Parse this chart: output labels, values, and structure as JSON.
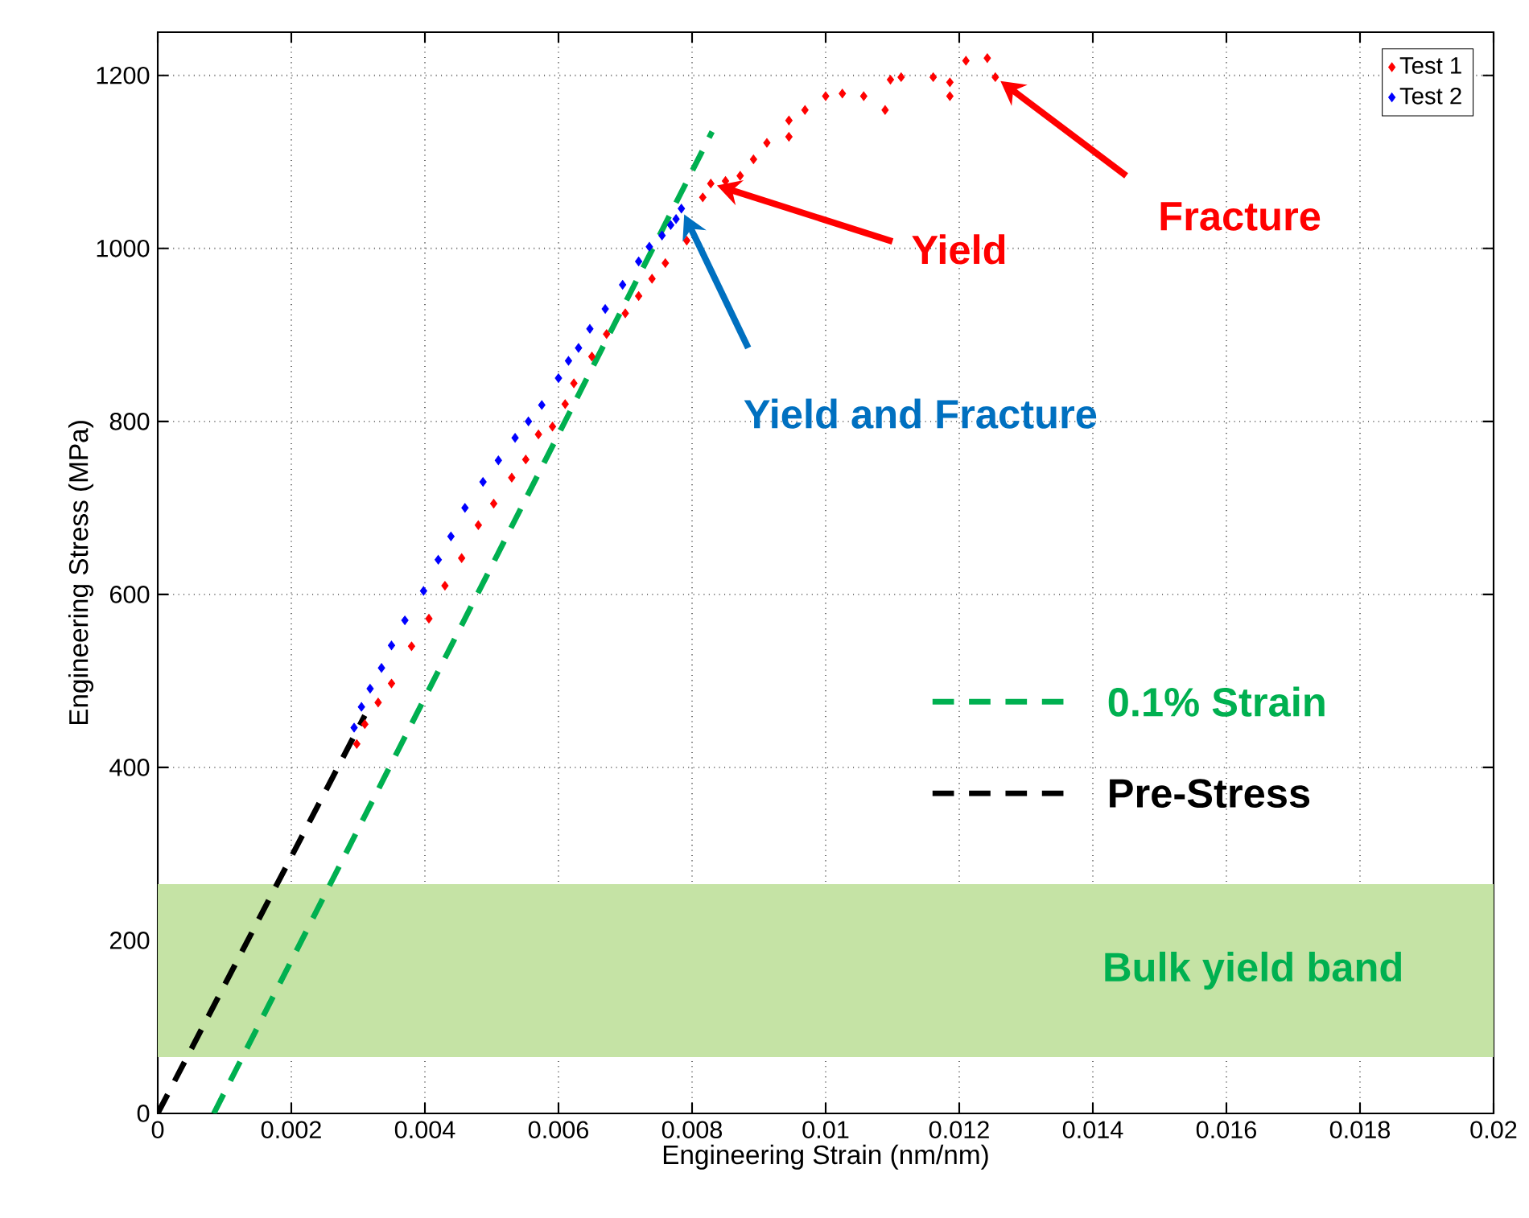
{
  "chart_data": {
    "type": "scatter",
    "xlabel": "Engineering Strain (nm/nm)",
    "ylabel": "Engineering Stress (MPa)",
    "xlim": [
      0,
      0.02
    ],
    "ylim": [
      0,
      1250
    ],
    "xticks": [
      0,
      0.002,
      0.004,
      0.006,
      0.008,
      0.01,
      0.012,
      0.014,
      0.016,
      0.018,
      0.02
    ],
    "yticks": [
      0,
      200,
      400,
      600,
      800,
      1000,
      1200
    ],
    "grid": true,
    "legend": "top right",
    "marker": "diamond",
    "series": [
      {
        "name": "Test 1",
        "color": "#ff0000",
        "x": [
          0.00298,
          0.0031,
          0.0033,
          0.0035,
          0.0038,
          0.00406,
          0.0043,
          0.00455,
          0.0048,
          0.00503,
          0.0053,
          0.00551,
          0.0057,
          0.00591,
          0.0061,
          0.00623,
          0.0065,
          0.00672,
          0.007,
          0.0072,
          0.0074,
          0.0076,
          0.00792,
          0.00816,
          0.00828,
          0.0085,
          0.00872,
          0.00892,
          0.00912,
          0.00945,
          0.00945,
          0.00969,
          0.01,
          0.01025,
          0.01057,
          0.01089,
          0.01097,
          0.01113,
          0.01161,
          0.01186,
          0.01186,
          0.0121,
          0.01242,
          0.01254
        ],
        "values": [
          427,
          450,
          475,
          497,
          540,
          572,
          610,
          642,
          680,
          705,
          735,
          756,
          785,
          794,
          820,
          844,
          875,
          901,
          925,
          945,
          965,
          983,
          1009,
          1059,
          1075,
          1078,
          1084,
          1103,
          1122,
          1129,
          1148,
          1160,
          1176,
          1179,
          1176,
          1160,
          1195,
          1198,
          1198,
          1192,
          1176,
          1217,
          1220,
          1198
        ]
      },
      {
        "name": "Test 2",
        "color": "#0000ff",
        "x": [
          0.00294,
          0.00305,
          0.00318,
          0.00335,
          0.0035,
          0.0037,
          0.00398,
          0.0042,
          0.00439,
          0.0046,
          0.00487,
          0.0051,
          0.00535,
          0.00555,
          0.00575,
          0.006,
          0.00615,
          0.0063,
          0.00647,
          0.0067,
          0.00696,
          0.0072,
          0.00736,
          0.00755,
          0.00768,
          0.00776,
          0.00784
        ],
        "values": [
          446,
          470,
          491,
          515,
          541,
          570,
          604,
          640,
          667,
          700,
          730,
          755,
          781,
          800,
          819,
          850,
          870,
          885,
          907,
          930,
          958,
          985,
          1002,
          1015,
          1027,
          1034,
          1046
        ]
      },
      {
        "name": "0.1% Strain",
        "type": "line",
        "color": "#00b050",
        "line_style": "dashed",
        "marker": "none",
        "x": [
          0.00084,
          0.0083
        ],
        "values": [
          0,
          1135
        ]
      },
      {
        "name": "Pre-Stress",
        "type": "line",
        "color": "#000000",
        "line_style": "dashed",
        "marker": "none",
        "x": [
          0,
          0.0031
        ],
        "values": [
          0,
          460
        ]
      }
    ],
    "bands": [
      {
        "axis": "y",
        "from": 65,
        "to": 265,
        "label": "Bulk yield band",
        "color": "#c5e3a5"
      }
    ],
    "annotations": [
      "Yield",
      "Fracture",
      "Yield and Fracture"
    ]
  }
}
